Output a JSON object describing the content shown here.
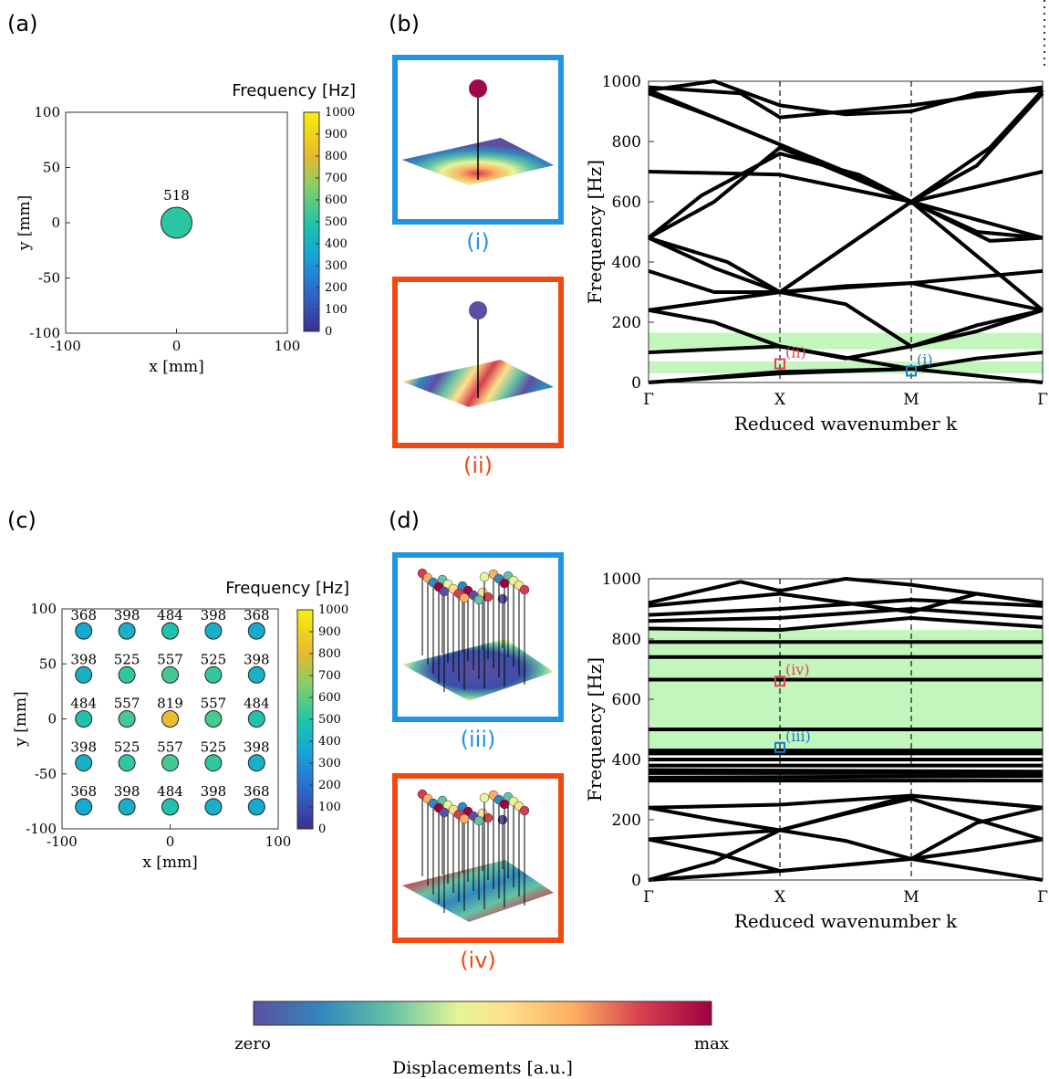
{
  "panel_labels": [
    "(a)",
    "(b)",
    "(c)",
    "(d)"
  ],
  "colorbar": {
    "title": "Frequency [Hz]",
    "ticks": [
      "1000",
      "900",
      "800",
      "700",
      "600",
      "500",
      "400",
      "300",
      "200",
      "100",
      "0"
    ]
  },
  "displacement_bar": {
    "min_label": "zero",
    "max_label": "max",
    "title": "Displacements [a.u.]"
  },
  "mode_labels": {
    "i": "(i)",
    "ii": "(ii)",
    "iii": "(iii)",
    "iv": "(iv)"
  },
  "colors": {
    "blue_frame": "#2196e0",
    "red_frame": "#f04a12",
    "band_gap": "#b8f4b0",
    "marker_red": "#e8414a",
    "marker_blue": "#1f78d1"
  },
  "chart_data": [
    {
      "id": "a",
      "type": "scatter",
      "xlabel": "x [mm]",
      "ylabel": "y [mm]",
      "xlim": [
        -100,
        100
      ],
      "ylim": [
        -100,
        100
      ],
      "xticks": [
        "-100",
        "0",
        "100"
      ],
      "yticks": [
        "100",
        "50",
        "0",
        "-50",
        "-100"
      ],
      "points": [
        {
          "x": 0,
          "y": 0,
          "value": 518
        }
      ]
    },
    {
      "id": "b",
      "type": "line",
      "xlabel": "Reduced wavenumber k",
      "ylabel": "Frequency [Hz]",
      "ylim": [
        0,
        1000
      ],
      "xticks": [
        "Γ",
        "X",
        "M",
        "Γ"
      ],
      "yticks": [
        "1000",
        "800",
        "600",
        "400",
        "200",
        "0"
      ],
      "band_gaps": [
        [
          110,
          165
        ],
        [
          30,
          70
        ]
      ],
      "markers": [
        {
          "label": "(ii)",
          "k": 1,
          "f": 62,
          "color": "red"
        },
        {
          "label": "(i)",
          "k": 2,
          "f": 38,
          "color": "blue"
        }
      ]
    },
    {
      "id": "c",
      "type": "scatter",
      "xlabel": "x [mm]",
      "ylabel": "y [mm]",
      "xlim": [
        -100,
        100
      ],
      "ylim": [
        -100,
        100
      ],
      "xticks": [
        "-100",
        "0",
        "100"
      ],
      "yticks": [
        "100",
        "50",
        "0",
        "-50",
        "-100"
      ],
      "grid": [
        [
          368,
          398,
          484,
          398,
          368
        ],
        [
          398,
          525,
          557,
          525,
          398
        ],
        [
          484,
          557,
          819,
          557,
          484
        ],
        [
          398,
          525,
          557,
          525,
          398
        ],
        [
          368,
          398,
          484,
          398,
          368
        ]
      ],
      "positions": [
        -80,
        -40,
        0,
        40,
        80
      ]
    },
    {
      "id": "d",
      "type": "line",
      "xlabel": "Reduced wavenumber k",
      "ylabel": "Frequency [Hz]",
      "ylim": [
        0,
        1000
      ],
      "xticks": [
        "Γ",
        "X",
        "M",
        "Γ"
      ],
      "yticks": [
        "1000",
        "800",
        "600",
        "400",
        "200",
        "0"
      ],
      "band_gaps": [
        [
          430,
          830
        ]
      ],
      "markers": [
        {
          "label": "(iv)",
          "k": 1,
          "f": 660,
          "color": "red"
        },
        {
          "label": "(iii)",
          "k": 1,
          "f": 440,
          "color": "blue"
        }
      ]
    }
  ]
}
